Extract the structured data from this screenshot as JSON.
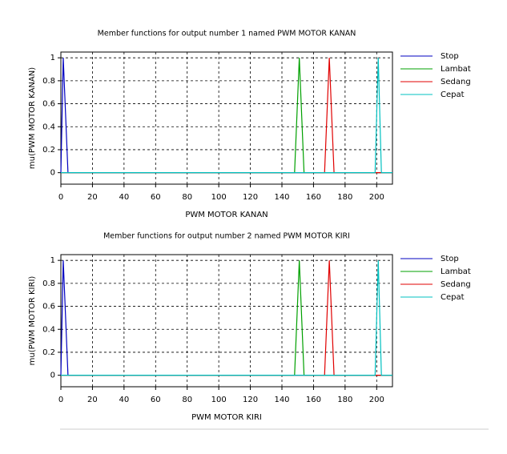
{
  "chart_data": [
    {
      "type": "line",
      "title": "Member functions for output number 1 named PWM MOTOR KANAN",
      "x_label": "PWM MOTOR KANAN",
      "y_label": "mu(PWM MOTOR KANAN)",
      "xlim": [
        0,
        210
      ],
      "ylim": [
        -0.1,
        1.05
      ],
      "xticks": [
        0,
        20,
        40,
        60,
        80,
        100,
        120,
        140,
        160,
        180,
        200
      ],
      "yticks": [
        0,
        0.2,
        0.4,
        0.6,
        0.8,
        1
      ],
      "grid": true,
      "legend": "outside-right",
      "series": [
        {
          "name": "Stop",
          "color": "#0000c0",
          "x": [
            0,
            1.5,
            4.5,
            210
          ],
          "values": [
            0,
            1,
            0,
            0
          ]
        },
        {
          "name": "Lambat",
          "color": "#00a000",
          "x": [
            0,
            148,
            151,
            154,
            210
          ],
          "values": [
            0,
            0,
            1,
            0,
            0
          ]
        },
        {
          "name": "Sedang",
          "color": "#e00000",
          "x": [
            0,
            167,
            170,
            173,
            210
          ],
          "values": [
            0,
            0,
            1,
            0,
            0
          ]
        },
        {
          "name": "Cepat",
          "color": "#00c0c0",
          "x": [
            0,
            199,
            201,
            203,
            210
          ],
          "values": [
            0,
            0,
            1,
            0,
            0
          ]
        }
      ]
    },
    {
      "type": "line",
      "title": "Member functions for output number 2 named PWM MOTOR KIRI",
      "x_label": "PWM MOTOR KIRI",
      "y_label": "mu(PWM MOTOR KIRI)",
      "xlim": [
        0,
        210
      ],
      "ylim": [
        -0.1,
        1.05
      ],
      "xticks": [
        0,
        20,
        40,
        60,
        80,
        100,
        120,
        140,
        160,
        180,
        200
      ],
      "yticks": [
        0,
        0.2,
        0.4,
        0.6,
        0.8,
        1
      ],
      "grid": true,
      "legend": "outside-right",
      "series": [
        {
          "name": "Stop",
          "color": "#0000c0",
          "x": [
            0,
            1.5,
            4.5,
            210
          ],
          "values": [
            0,
            1,
            0,
            0
          ]
        },
        {
          "name": "Lambat",
          "color": "#00a000",
          "x": [
            0,
            148,
            151,
            154,
            210
          ],
          "values": [
            0,
            0,
            1,
            0,
            0
          ]
        },
        {
          "name": "Sedang",
          "color": "#e00000",
          "x": [
            0,
            167,
            170,
            173,
            210
          ],
          "values": [
            0,
            0,
            1,
            0,
            0
          ]
        },
        {
          "name": "Cepat",
          "color": "#00c0c0",
          "x": [
            0,
            199,
            201,
            203,
            210
          ],
          "values": [
            0,
            0,
            1,
            0,
            0
          ]
        }
      ]
    }
  ]
}
